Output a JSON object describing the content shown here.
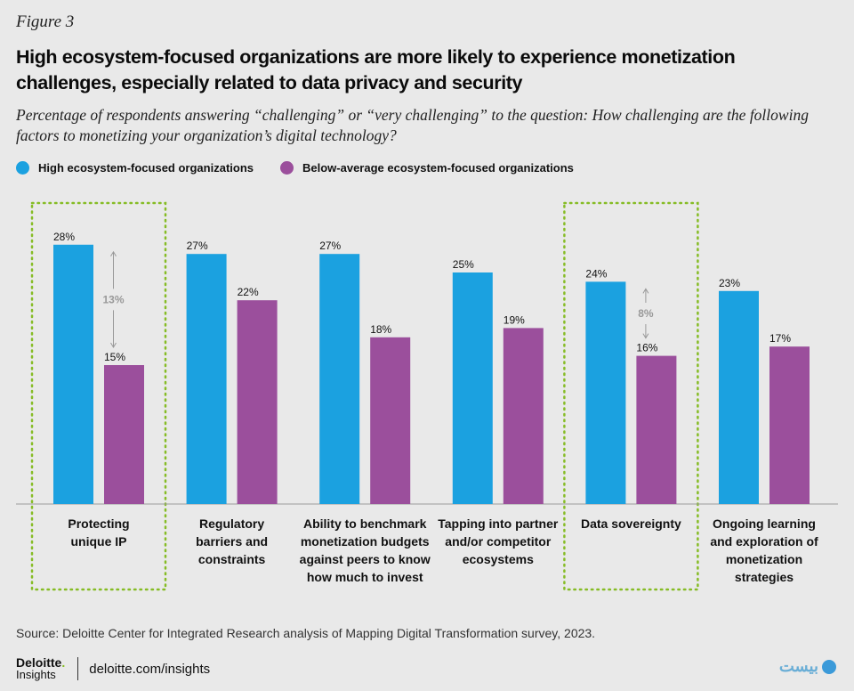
{
  "figure_label": "Figure 3",
  "title": "High ecosystem-focused organizations are more likely to experience monetization challenges, especially related to data privacy and security",
  "subtitle": "Percentage of respondents answering “challenging” or “very challenging” to the question: How challenging are the following factors to monetizing your organization’s digital technology?",
  "source": "Source: Deloitte Center for Integrated Research analysis of Mapping Digital Transformation survey, 2023.",
  "footer": {
    "logo_top": "Deloitte",
    "logo_dot": ".",
    "logo_bottom": "Insights",
    "url": "deloitte.com/insights"
  },
  "watermark": {
    "icon": "watermark-logo-icon"
  },
  "colors": {
    "high": "#1ba1e0",
    "below": "#9b4f9c",
    "highlight_border": "#86bc25",
    "diff": "#999999",
    "baseline": "#9a9a9a"
  },
  "chart_data": {
    "type": "bar",
    "categories": [
      [
        "Protecting",
        "unique IP"
      ],
      [
        "Regulatory",
        "barriers and",
        "constraints"
      ],
      [
        "Ability to benchmark",
        "monetization budgets",
        "against peers to know",
        "how much to invest"
      ],
      [
        "Tapping into partner",
        "and/or competitor",
        "ecosystems"
      ],
      [
        "Data sovereignty"
      ],
      [
        "Ongoing learning",
        "and exploration of",
        "monetization",
        "strategies"
      ]
    ],
    "series": [
      {
        "name": "High ecosystem-focused organizations",
        "values": [
          28,
          27,
          27,
          25,
          24,
          23
        ]
      },
      {
        "name": "Below-average ecosystem-focused organizations",
        "values": [
          15,
          22,
          18,
          19,
          16,
          17
        ]
      }
    ],
    "value_suffix": "%",
    "ylim": [
      0,
      30
    ],
    "highlighted_categories": [
      0,
      4
    ],
    "differences": [
      {
        "category": 0,
        "label": "13%"
      },
      {
        "category": 4,
        "label": "8%"
      }
    ],
    "legend_position": "top-left",
    "grid": false
  }
}
